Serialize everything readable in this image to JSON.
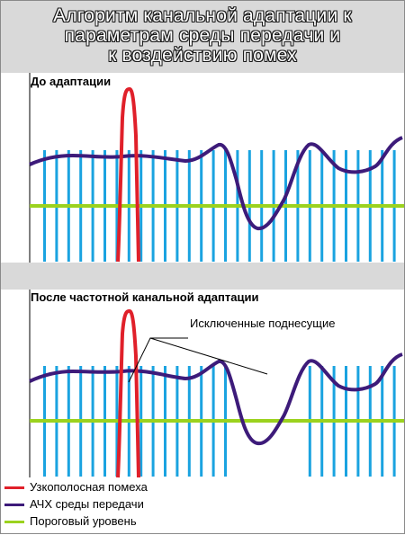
{
  "figure": {
    "title_lines": [
      "Алгоритм канальной адаптации к",
      "параметрам среды передачи и",
      "к воздействию помех"
    ]
  },
  "panels": [
    {
      "label": "До адаптации"
    },
    {
      "label": "После частотной канальной адаптации",
      "callout": "Исключенные поднесущие"
    }
  ],
  "legend": [
    {
      "label": "Узкополосная помеха",
      "color": "#e0202a"
    },
    {
      "label": "АЧХ среды передачи",
      "color": "#3d1b7a"
    },
    {
      "label": "Пороговый уровень",
      "color": "#9bd21e"
    }
  ],
  "colors": {
    "subcarrier": "#1aa3e0",
    "panel_bg": "#d9d9d9",
    "noise": "#e0202a",
    "response": "#3d1b7a",
    "threshold": "#9bd21e"
  }
}
